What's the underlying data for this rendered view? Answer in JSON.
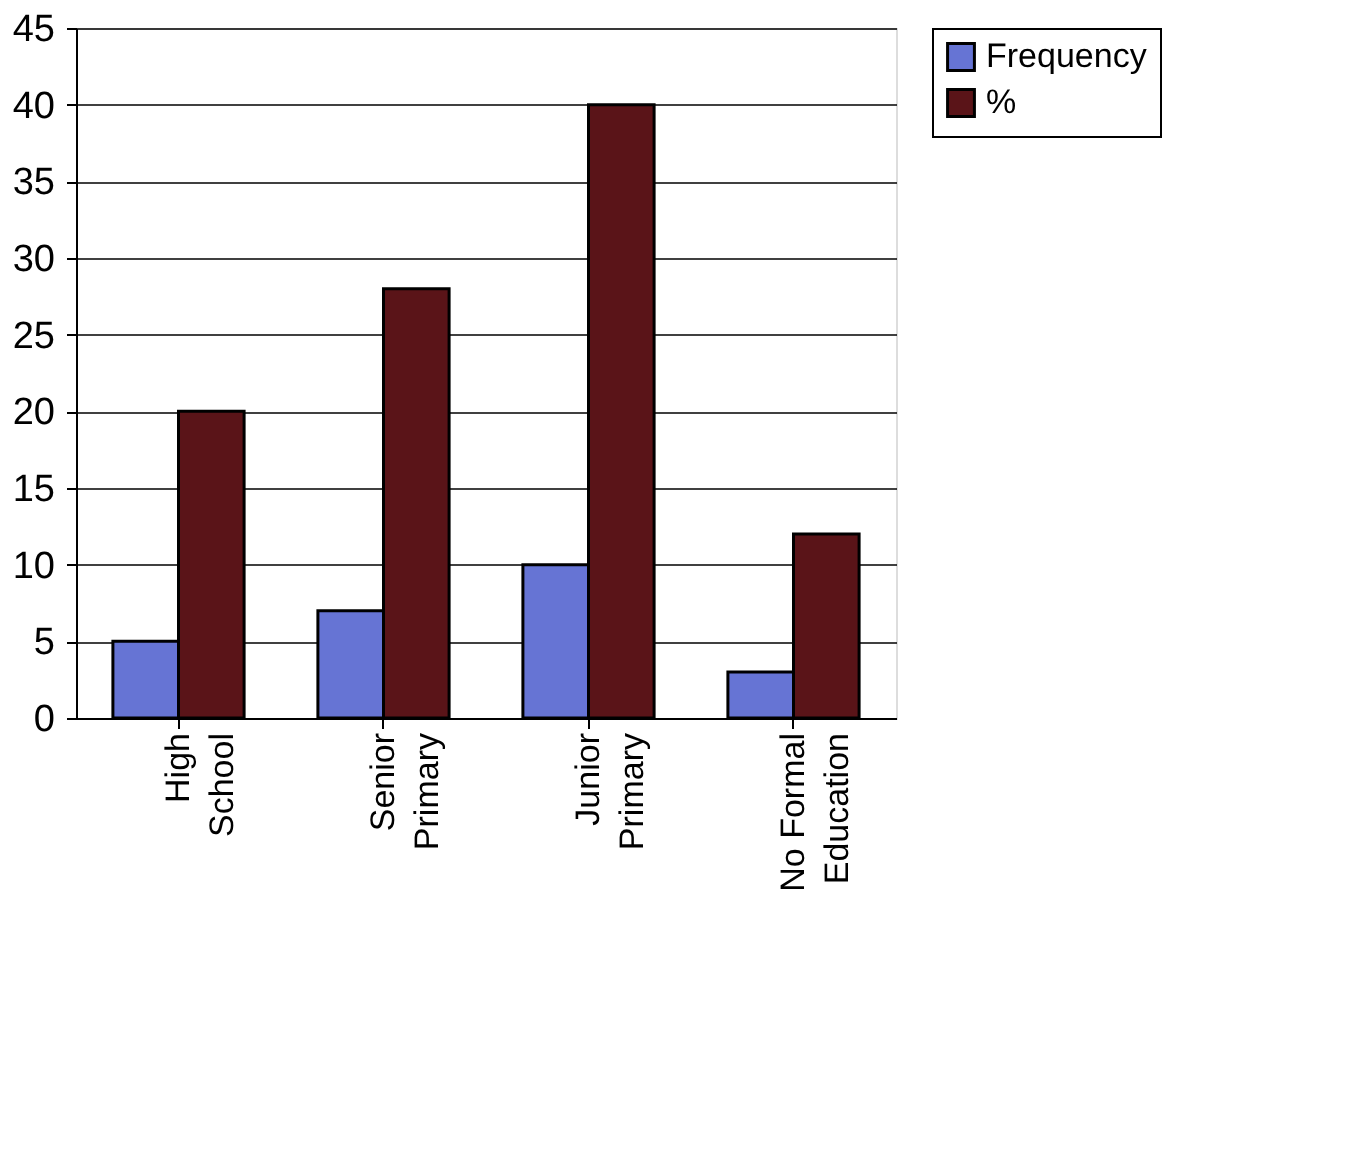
{
  "chart_data": {
    "type": "bar",
    "categories": [
      "High School",
      "Senior Primary",
      "Junior Primary",
      "No Formal Education"
    ],
    "series": [
      {
        "name": "Frequency",
        "color": "#6674d4",
        "values": [
          5,
          7,
          10,
          3
        ]
      },
      {
        "name": "%",
        "color": "#5a1418",
        "values": [
          20,
          28,
          40,
          12
        ]
      }
    ],
    "ylim": [
      0,
      45
    ],
    "yticks": [
      0,
      5,
      10,
      15,
      20,
      25,
      30,
      35,
      40,
      45
    ],
    "grid": "y",
    "legend": "right"
  }
}
